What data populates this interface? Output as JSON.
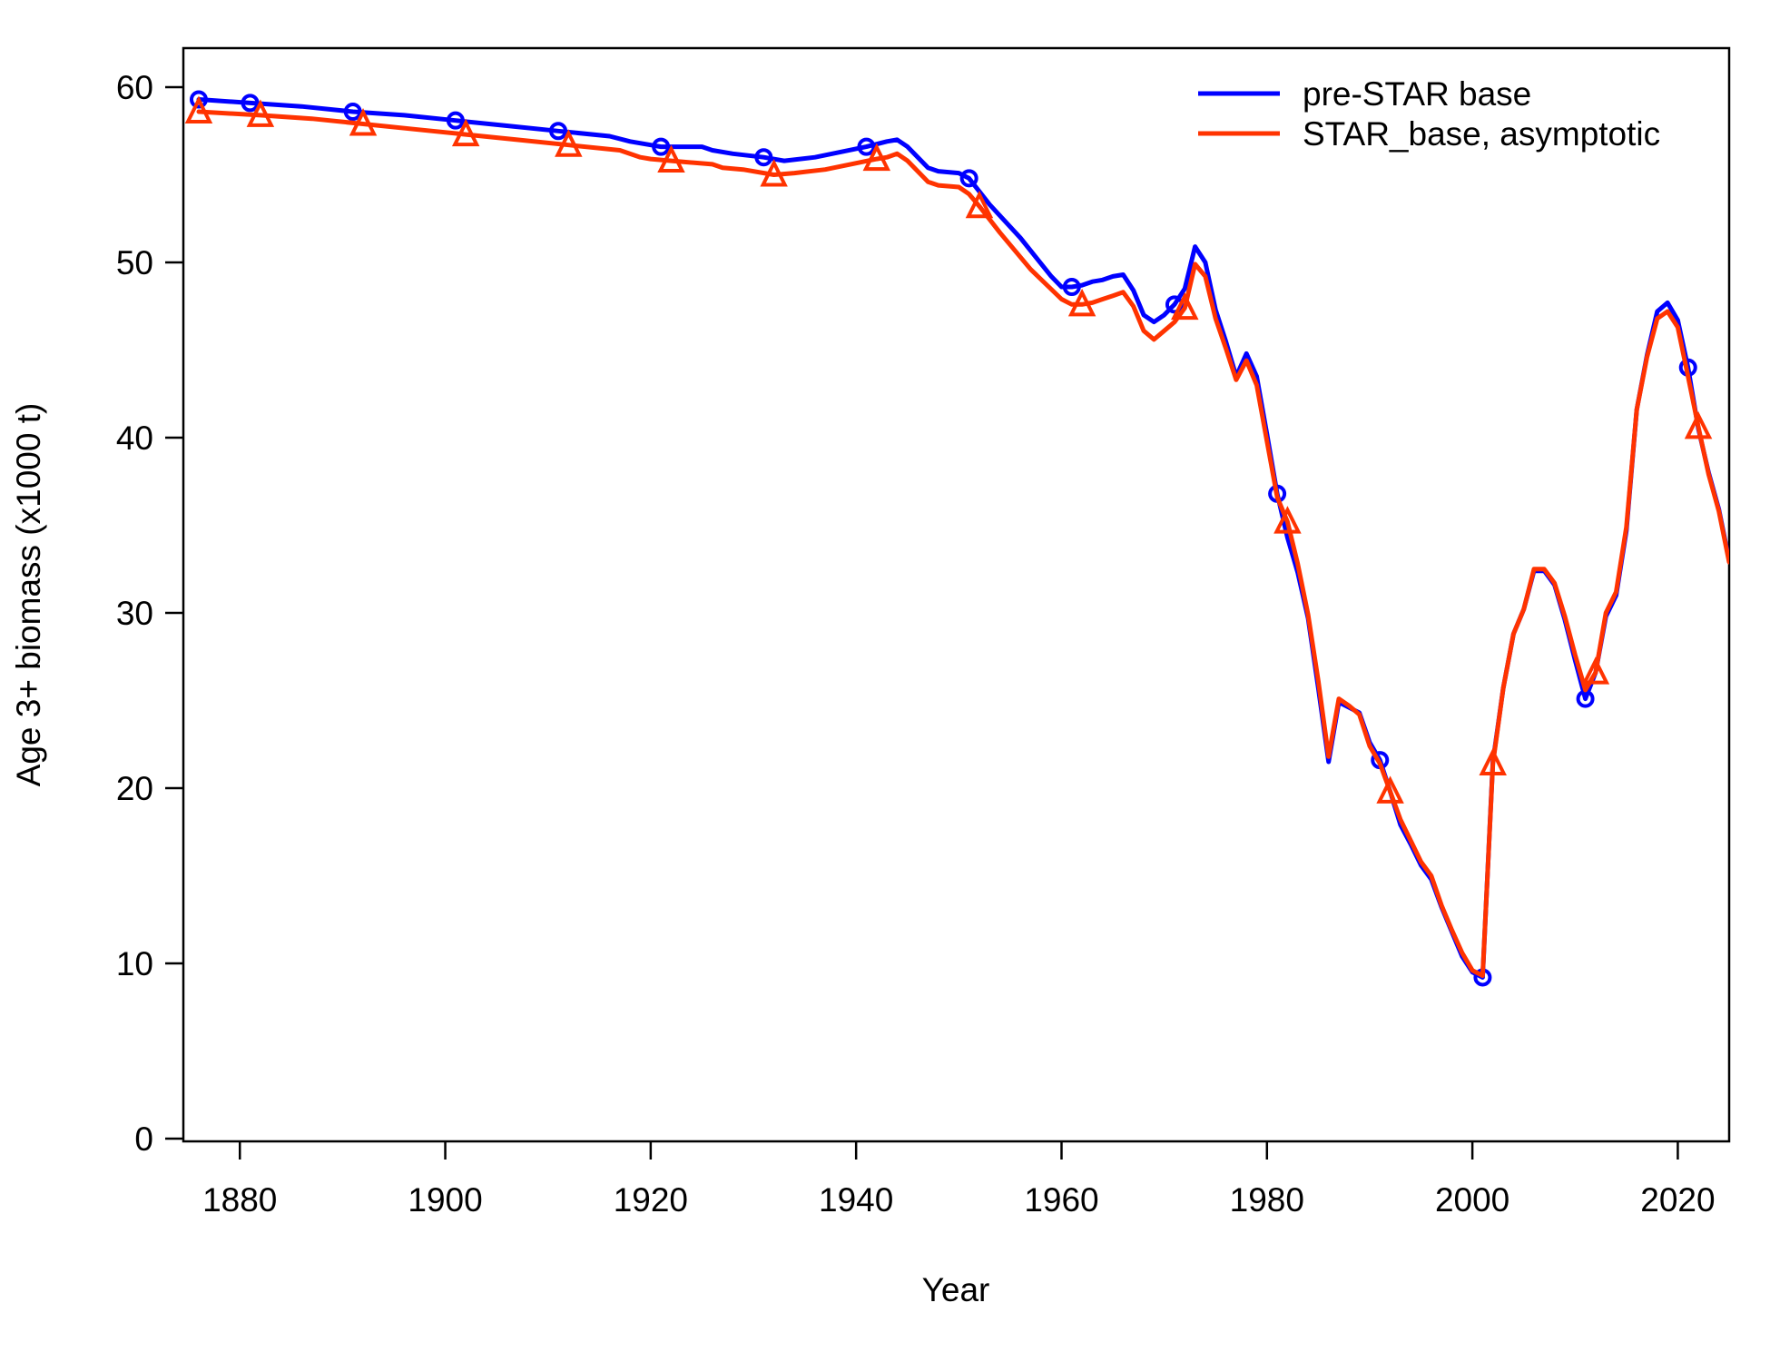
{
  "chart_data": {
    "type": "line",
    "xlabel": "Year",
    "ylabel": "Age 3+ biomass (x1000 t)",
    "xlim": [
      1874.5,
      2025
    ],
    "ylim": [
      0,
      60
    ],
    "xticks": [
      1880,
      1900,
      1920,
      1940,
      1960,
      1980,
      2000,
      2020
    ],
    "yticks": [
      0,
      10,
      20,
      30,
      40,
      50,
      60
    ],
    "grid": false,
    "legend_position": "top-right",
    "series": [
      {
        "name": "pre-STAR base",
        "color": "#0000ff",
        "marker": "circle",
        "x": [
          1876,
          1881,
          1886,
          1891,
          1896,
          1901,
          1906,
          1911,
          1916,
          1918,
          1920,
          1921,
          1925,
          1926,
          1928,
          1931,
          1933,
          1936,
          1941,
          1943,
          1944,
          1945,
          1947,
          1948,
          1950,
          1951,
          1953,
          1956,
          1959,
          1960,
          1961,
          1962,
          1963,
          1964,
          1965,
          1966,
          1967,
          1968,
          1969,
          1970,
          1971,
          1972,
          1973,
          1974,
          1975,
          1976,
          1977,
          1978,
          1979,
          1980,
          1981,
          1982,
          1983,
          1984,
          1985,
          1986,
          1987,
          1988,
          1989,
          1990,
          1991,
          1992,
          1993,
          1994,
          1995,
          1996,
          1997,
          1998,
          1999,
          2000,
          2001,
          2002,
          2003,
          2004,
          2005,
          2006,
          2007,
          2008,
          2009,
          2010,
          2011,
          2012,
          2013,
          2014,
          2015,
          2016,
          2017,
          2018,
          2019,
          2020,
          2021,
          2022,
          2023,
          2024,
          2025
        ],
        "values": [
          59.3,
          59.1,
          58.9,
          58.6,
          58.4,
          58.1,
          57.8,
          57.5,
          57.2,
          56.9,
          56.7,
          56.6,
          56.6,
          56.4,
          56.2,
          56.0,
          55.8,
          56.0,
          56.6,
          56.9,
          57.0,
          56.6,
          55.4,
          55.2,
          55.1,
          54.8,
          53.3,
          51.4,
          49.2,
          48.6,
          48.6,
          48.7,
          48.9,
          49.0,
          49.2,
          49.3,
          48.4,
          47.0,
          46.6,
          47.0,
          47.6,
          48.5,
          50.9,
          50.0,
          47.3,
          45.5,
          43.5,
          44.8,
          43.5,
          40.2,
          36.8,
          34.3,
          32.3,
          29.7,
          25.7,
          21.5,
          24.9,
          24.6,
          24.3,
          22.6,
          21.6,
          19.8,
          17.9,
          16.8,
          15.6,
          14.8,
          13.2,
          11.8,
          10.4,
          9.5,
          9.2,
          21.5,
          25.7,
          28.8,
          30.2,
          32.4,
          32.4,
          31.6,
          29.6,
          27.3,
          25.1,
          26.6,
          29.8,
          31.0,
          34.7,
          41.6,
          44.7,
          47.2,
          47.7,
          46.7,
          44.0,
          40.5,
          38.0,
          35.9,
          33.0
        ]
      },
      {
        "name": "STAR_base, asymptotic",
        "color": "#ff3300",
        "marker": "triangle",
        "x": [
          1876,
          1882,
          1887,
          1892,
          1897,
          1902,
          1907,
          1912,
          1917,
          1919,
          1920,
          1922,
          1926,
          1927,
          1929,
          1932,
          1934,
          1937,
          1942,
          1943,
          1944,
          1945,
          1947,
          1948,
          1950,
          1951,
          1952,
          1954,
          1957,
          1960,
          1961,
          1962,
          1963,
          1964,
          1965,
          1966,
          1967,
          1968,
          1969,
          1970,
          1971,
          1972,
          1973,
          1974,
          1975,
          1976,
          1977,
          1978,
          1979,
          1980,
          1981,
          1982,
          1983,
          1984,
          1985,
          1986,
          1987,
          1988,
          1989,
          1990,
          1991,
          1992,
          1993,
          1994,
          1995,
          1996,
          1997,
          1998,
          1999,
          2000,
          2001,
          2002,
          2003,
          2004,
          2005,
          2006,
          2007,
          2008,
          2009,
          2010,
          2011,
          2012,
          2013,
          2014,
          2015,
          2016,
          2017,
          2018,
          2019,
          2020,
          2021,
          2022,
          2023,
          2024,
          2025
        ],
        "values": [
          58.6,
          58.4,
          58.2,
          57.9,
          57.6,
          57.3,
          57.0,
          56.7,
          56.4,
          56.0,
          55.9,
          55.8,
          55.6,
          55.4,
          55.3,
          55.0,
          55.1,
          55.3,
          55.9,
          56.0,
          56.2,
          55.8,
          54.6,
          54.4,
          54.3,
          53.9,
          53.2,
          51.7,
          49.6,
          47.9,
          47.6,
          47.6,
          47.7,
          47.9,
          48.1,
          48.3,
          47.5,
          46.1,
          45.6,
          46.1,
          46.6,
          47.4,
          49.9,
          49.2,
          46.8,
          45.1,
          43.3,
          44.4,
          43.0,
          39.8,
          36.6,
          35.2,
          32.8,
          29.9,
          26.1,
          21.8,
          25.1,
          24.7,
          24.2,
          22.4,
          21.4,
          19.8,
          18.2,
          17.0,
          15.8,
          15.0,
          13.3,
          11.9,
          10.6,
          9.6,
          9.3,
          21.4,
          25.7,
          28.8,
          30.2,
          32.5,
          32.5,
          31.7,
          29.8,
          27.6,
          25.6,
          26.6,
          30.0,
          31.2,
          34.9,
          41.6,
          44.6,
          46.8,
          47.2,
          46.3,
          43.5,
          40.6,
          37.9,
          35.8,
          32.9
        ]
      }
    ]
  }
}
